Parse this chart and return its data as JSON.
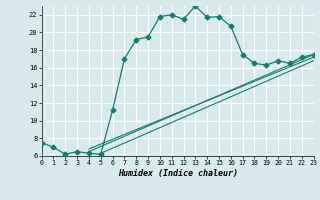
{
  "bg_color": "#d8eaeb",
  "grid_color": "#ffffff",
  "line_color": "#1a7a6e",
  "xlabel": "Humidex (Indice chaleur)",
  "xlim": [
    0,
    23
  ],
  "ylim": [
    6,
    23
  ],
  "yticks": [
    6,
    8,
    10,
    12,
    14,
    16,
    18,
    20,
    22
  ],
  "xticks": [
    0,
    1,
    2,
    3,
    4,
    5,
    6,
    7,
    8,
    9,
    10,
    11,
    12,
    13,
    14,
    15,
    16,
    17,
    18,
    19,
    20,
    21,
    22,
    23
  ],
  "main_x": [
    0,
    1,
    2,
    3,
    4,
    5,
    6,
    7,
    8,
    9,
    10,
    11,
    12,
    13,
    14,
    15,
    16,
    17,
    18,
    19,
    20,
    21,
    22,
    23
  ],
  "main_y": [
    7.5,
    7.0,
    6.2,
    6.5,
    6.3,
    6.2,
    11.2,
    17.0,
    19.2,
    19.5,
    21.8,
    22.0,
    21.5,
    23.0,
    21.7,
    21.8,
    20.7,
    17.5,
    16.5,
    16.3,
    16.8,
    16.5,
    17.2,
    17.5
  ],
  "line1_x": [
    4,
    23
  ],
  "line1_y": [
    6.5,
    17.5
  ],
  "line2_x": [
    4,
    23
  ],
  "line2_y": [
    6.8,
    17.2
  ],
  "line3_x": [
    5,
    23
  ],
  "line3_y": [
    6.3,
    16.8
  ]
}
